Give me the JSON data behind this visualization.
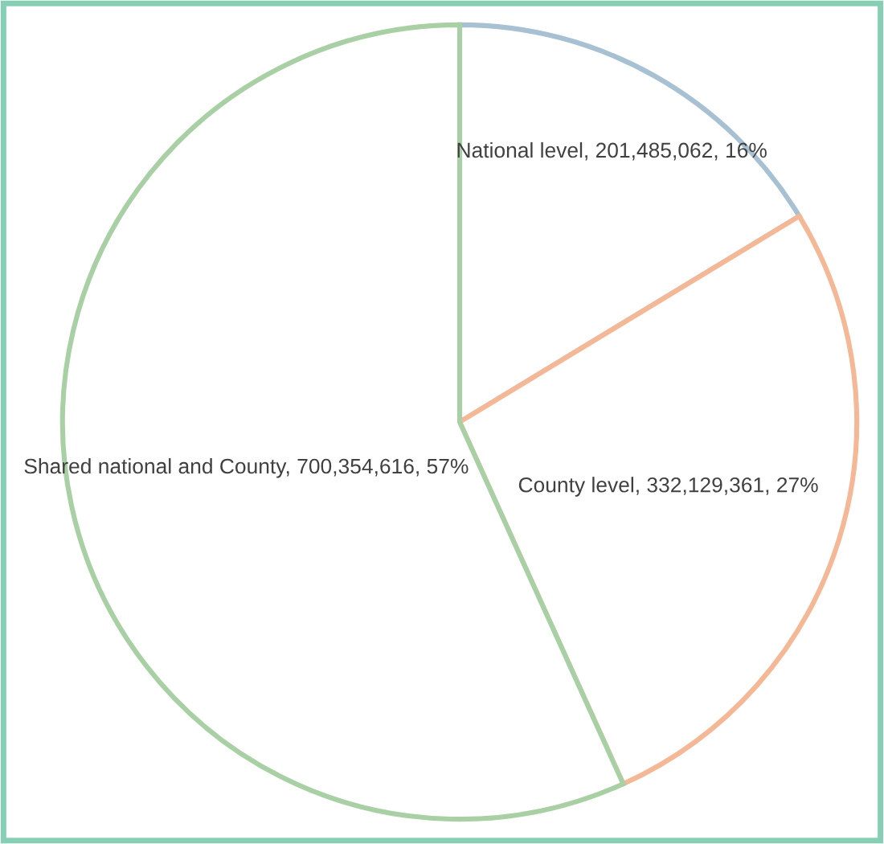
{
  "chart_data": {
    "type": "pie",
    "categories": [
      "National level",
      "County level",
      "Shared national and County"
    ],
    "values": [
      201485062,
      332129361,
      700354616
    ],
    "value_labels": [
      "201,485,062, 16%",
      "332,129,361, 27%",
      "700,354,616, 57%"
    ],
    "colors": [
      "#a7c0d2",
      "#f4b896",
      "#a9d0a4"
    ]
  }
}
